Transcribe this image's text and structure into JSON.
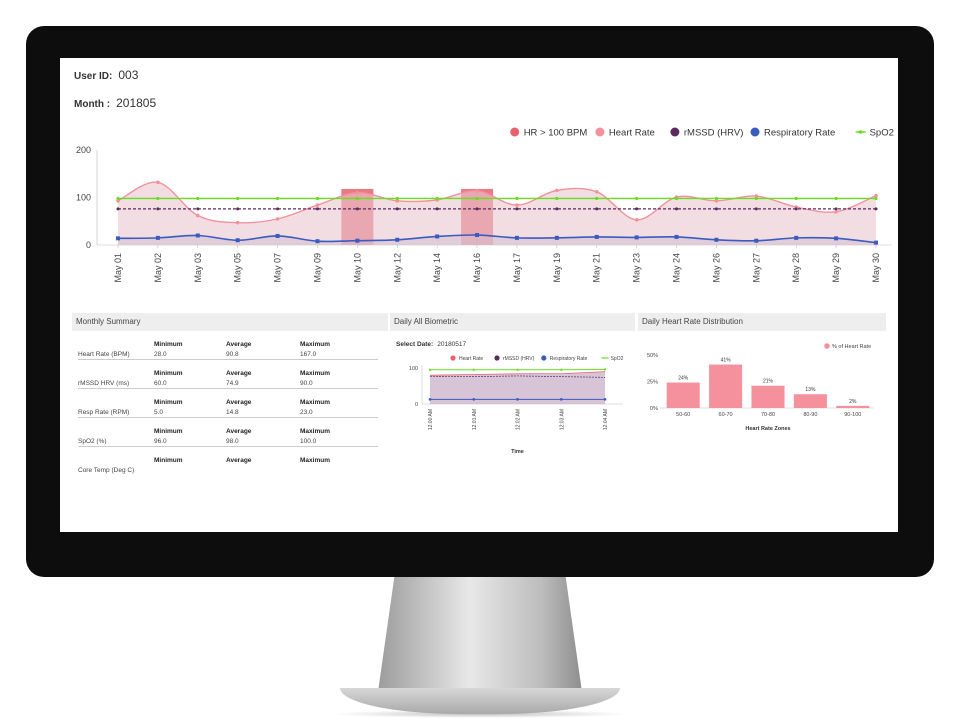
{
  "header": {
    "user_id_label": "User ID:",
    "user_id": "003",
    "month_label": "Month :",
    "month": "201805"
  },
  "colors": {
    "hr_over_100": "#e8616f",
    "heart_rate": "#f4919c",
    "hrv": "#5b2a5e",
    "respiratory": "#3a5bbf",
    "spo2": "#66e01a",
    "bar": "#f4919c"
  },
  "chart_data": [
    {
      "type": "line",
      "categories": [
        "May 01",
        "May 02",
        "May 03",
        "May 05",
        "May 07",
        "May 09",
        "May 10",
        "May 12",
        "May 14",
        "May 16",
        "May 17",
        "May 19",
        "May 21",
        "May 23",
        "May 24",
        "May 26",
        "May 27",
        "May 28",
        "May 29",
        "May 30"
      ],
      "ylim": [
        0,
        200
      ],
      "yticks": [
        0,
        100,
        200
      ],
      "legend_position": "top-right",
      "series": [
        {
          "name": "HR > 100 BPM",
          "kind": "bar",
          "values": [
            null,
            null,
            null,
            null,
            null,
            null,
            118,
            null,
            null,
            118,
            null,
            null,
            null,
            null,
            null,
            null,
            null,
            null,
            null,
            null
          ]
        },
        {
          "name": "Heart Rate",
          "kind": "area",
          "values": [
            93,
            132,
            62,
            47,
            55,
            84,
            110,
            93,
            95,
            114,
            84,
            115,
            112,
            53,
            101,
            93,
            103,
            80,
            70,
            104
          ]
        },
        {
          "name": "rMSSD (HRV)",
          "kind": "dashed",
          "values": [
            76,
            76,
            76,
            76,
            76,
            76,
            76,
            76,
            76,
            76,
            76,
            76,
            76,
            76,
            76,
            76,
            76,
            76,
            76,
            76
          ]
        },
        {
          "name": "Respiratory Rate",
          "kind": "area",
          "values": [
            14,
            15,
            20,
            10,
            19,
            8,
            9,
            11,
            18,
            21,
            15,
            15,
            17,
            16,
            17,
            11,
            9,
            15,
            14,
            5
          ]
        },
        {
          "name": "SpO2",
          "kind": "line",
          "values": [
            98,
            98,
            98,
            98,
            98,
            98,
            98,
            98,
            98,
            98,
            98,
            98,
            98,
            98,
            98,
            98,
            98,
            98,
            98,
            98
          ]
        }
      ]
    },
    {
      "type": "line",
      "categories": [
        "12:00 AM",
        "12:01 AM",
        "12:02 AM",
        "12:03 AM",
        "12:04 AM"
      ],
      "xlabel": "Time",
      "ylim": [
        0,
        100
      ],
      "yticks": [
        0,
        100
      ],
      "legend_position": "top",
      "series": [
        {
          "name": "Heart Rate",
          "values": [
            80,
            82,
            84,
            84,
            90
          ]
        },
        {
          "name": "rMSSD (HRV)",
          "values": [
            77,
            76,
            78,
            76,
            74
          ]
        },
        {
          "name": "Respiratory Rate",
          "values": [
            13,
            13,
            13,
            13,
            13
          ]
        },
        {
          "name": "SpO2",
          "values": [
            95,
            95,
            95,
            95,
            96
          ]
        }
      ]
    },
    {
      "type": "bar",
      "categories": [
        "50-60",
        "60-70",
        "70-80",
        "80-90",
        "90-100"
      ],
      "values": [
        24,
        41,
        21,
        13,
        2
      ],
      "value_labels": [
        "24%",
        "41%",
        "21%",
        "13%",
        "2%"
      ],
      "xlabel": "Heart Rate Zones",
      "yticks": [
        "0%",
        "25%",
        "50%"
      ],
      "ylim": [
        0,
        50
      ],
      "legend": "% of Heart Rate",
      "legend_position": "top-right"
    }
  ],
  "summary": {
    "title": "Monthly Summary",
    "col_min": "Minimum",
    "col_avg": "Average",
    "col_max": "Maximum",
    "rows": [
      {
        "label": "Heart Rate (BPM)",
        "min": "28.0",
        "avg": "90.8",
        "max": "167.0"
      },
      {
        "label": "rMSSD HRV (ms)",
        "min": "60.0",
        "avg": "74.9",
        "max": "90.0"
      },
      {
        "label": "Resp Rate (RPM)",
        "min": "5.0",
        "avg": "14.8",
        "max": "23.0"
      },
      {
        "label": "SpO2 (%)",
        "min": "96.0",
        "avg": "98.0",
        "max": "100.0"
      },
      {
        "label": "Core Temp (Deg C)",
        "min": "",
        "avg": "",
        "max": ""
      }
    ]
  },
  "daily_biometric": {
    "title": "Daily All Biometric",
    "select_date_label": "Select Date:",
    "select_date": "20180517"
  },
  "distribution": {
    "title": "Daily Heart Rate Distribution"
  }
}
